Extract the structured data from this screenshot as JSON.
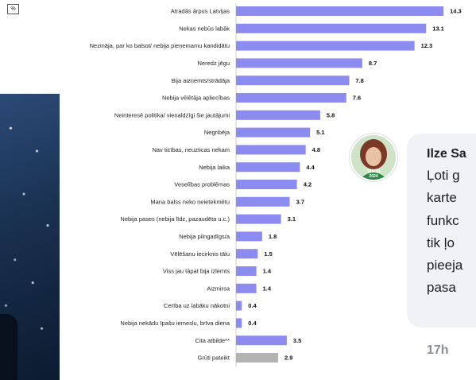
{
  "percent_badge": "%",
  "colors": {
    "bar": "#8c8cf0",
    "bar_other": "#b3b3b3",
    "axis": "#cfcfcf"
  },
  "chart_data": {
    "type": "bar",
    "orientation": "horizontal",
    "categories": [
      "Atradās ārpus Latvijas",
      "Nekas nebūs labāk",
      "Nezināja, par ko balsot/ nebija pieņemamu kandidātu",
      "Neredz jēgu",
      "Bija aizņemts/strādāja",
      "Nebija vēlētāja apliecības",
      "Neinteresē politika/ vienaldzīgi šie jautājumi",
      "Negribēja",
      "Nav ticības, neuzticas nekam",
      "Nebija laika",
      "Veselības problēmas",
      "Mana balss neko neietekmētu",
      "Nebija pases (nebija līdz, pazaudēta u.c.)",
      "Nebija pilngadīgs/a",
      "Vēlēšanu iecirknis tālu",
      "Viss jau tāpat bija izlemts",
      "Aizmirsa",
      "Cerība uz labāku nākotni",
      "Nebija nekādu īpašu iemeslu, brīva diena",
      "Cita atbilde**",
      "Grūti pateikt"
    ],
    "values": [
      14.3,
      13.1,
      12.3,
      8.7,
      7.8,
      7.6,
      5.8,
      5.1,
      4.8,
      4.4,
      4.2,
      3.7,
      3.1,
      1.8,
      1.5,
      1.4,
      1.4,
      0.4,
      0.4,
      3.5,
      2.9
    ],
    "value_labels": [
      "14.3",
      "13.1",
      "12.3",
      "8.7",
      "7.8",
      "7.6",
      "5.8",
      "5.1",
      "4.8",
      "4.4",
      "4.2",
      "3.7",
      "3.1",
      "1.8",
      "1.5",
      "1.4",
      "1.4",
      "0.4",
      "0.4",
      "3.5",
      "2.9"
    ],
    "highlight_last": true,
    "xlim": [
      0,
      15
    ],
    "grid": false,
    "legend": "none"
  },
  "comment": {
    "author": "Ilze Sa",
    "lines": [
      "Ļoti g",
      "karte",
      "funkc",
      "tik ļo",
      "pieeja",
      "pasa"
    ],
    "time": "17h",
    "avatar_badge_line1": "TARTU",
    "avatar_badge_line2": "2024"
  }
}
